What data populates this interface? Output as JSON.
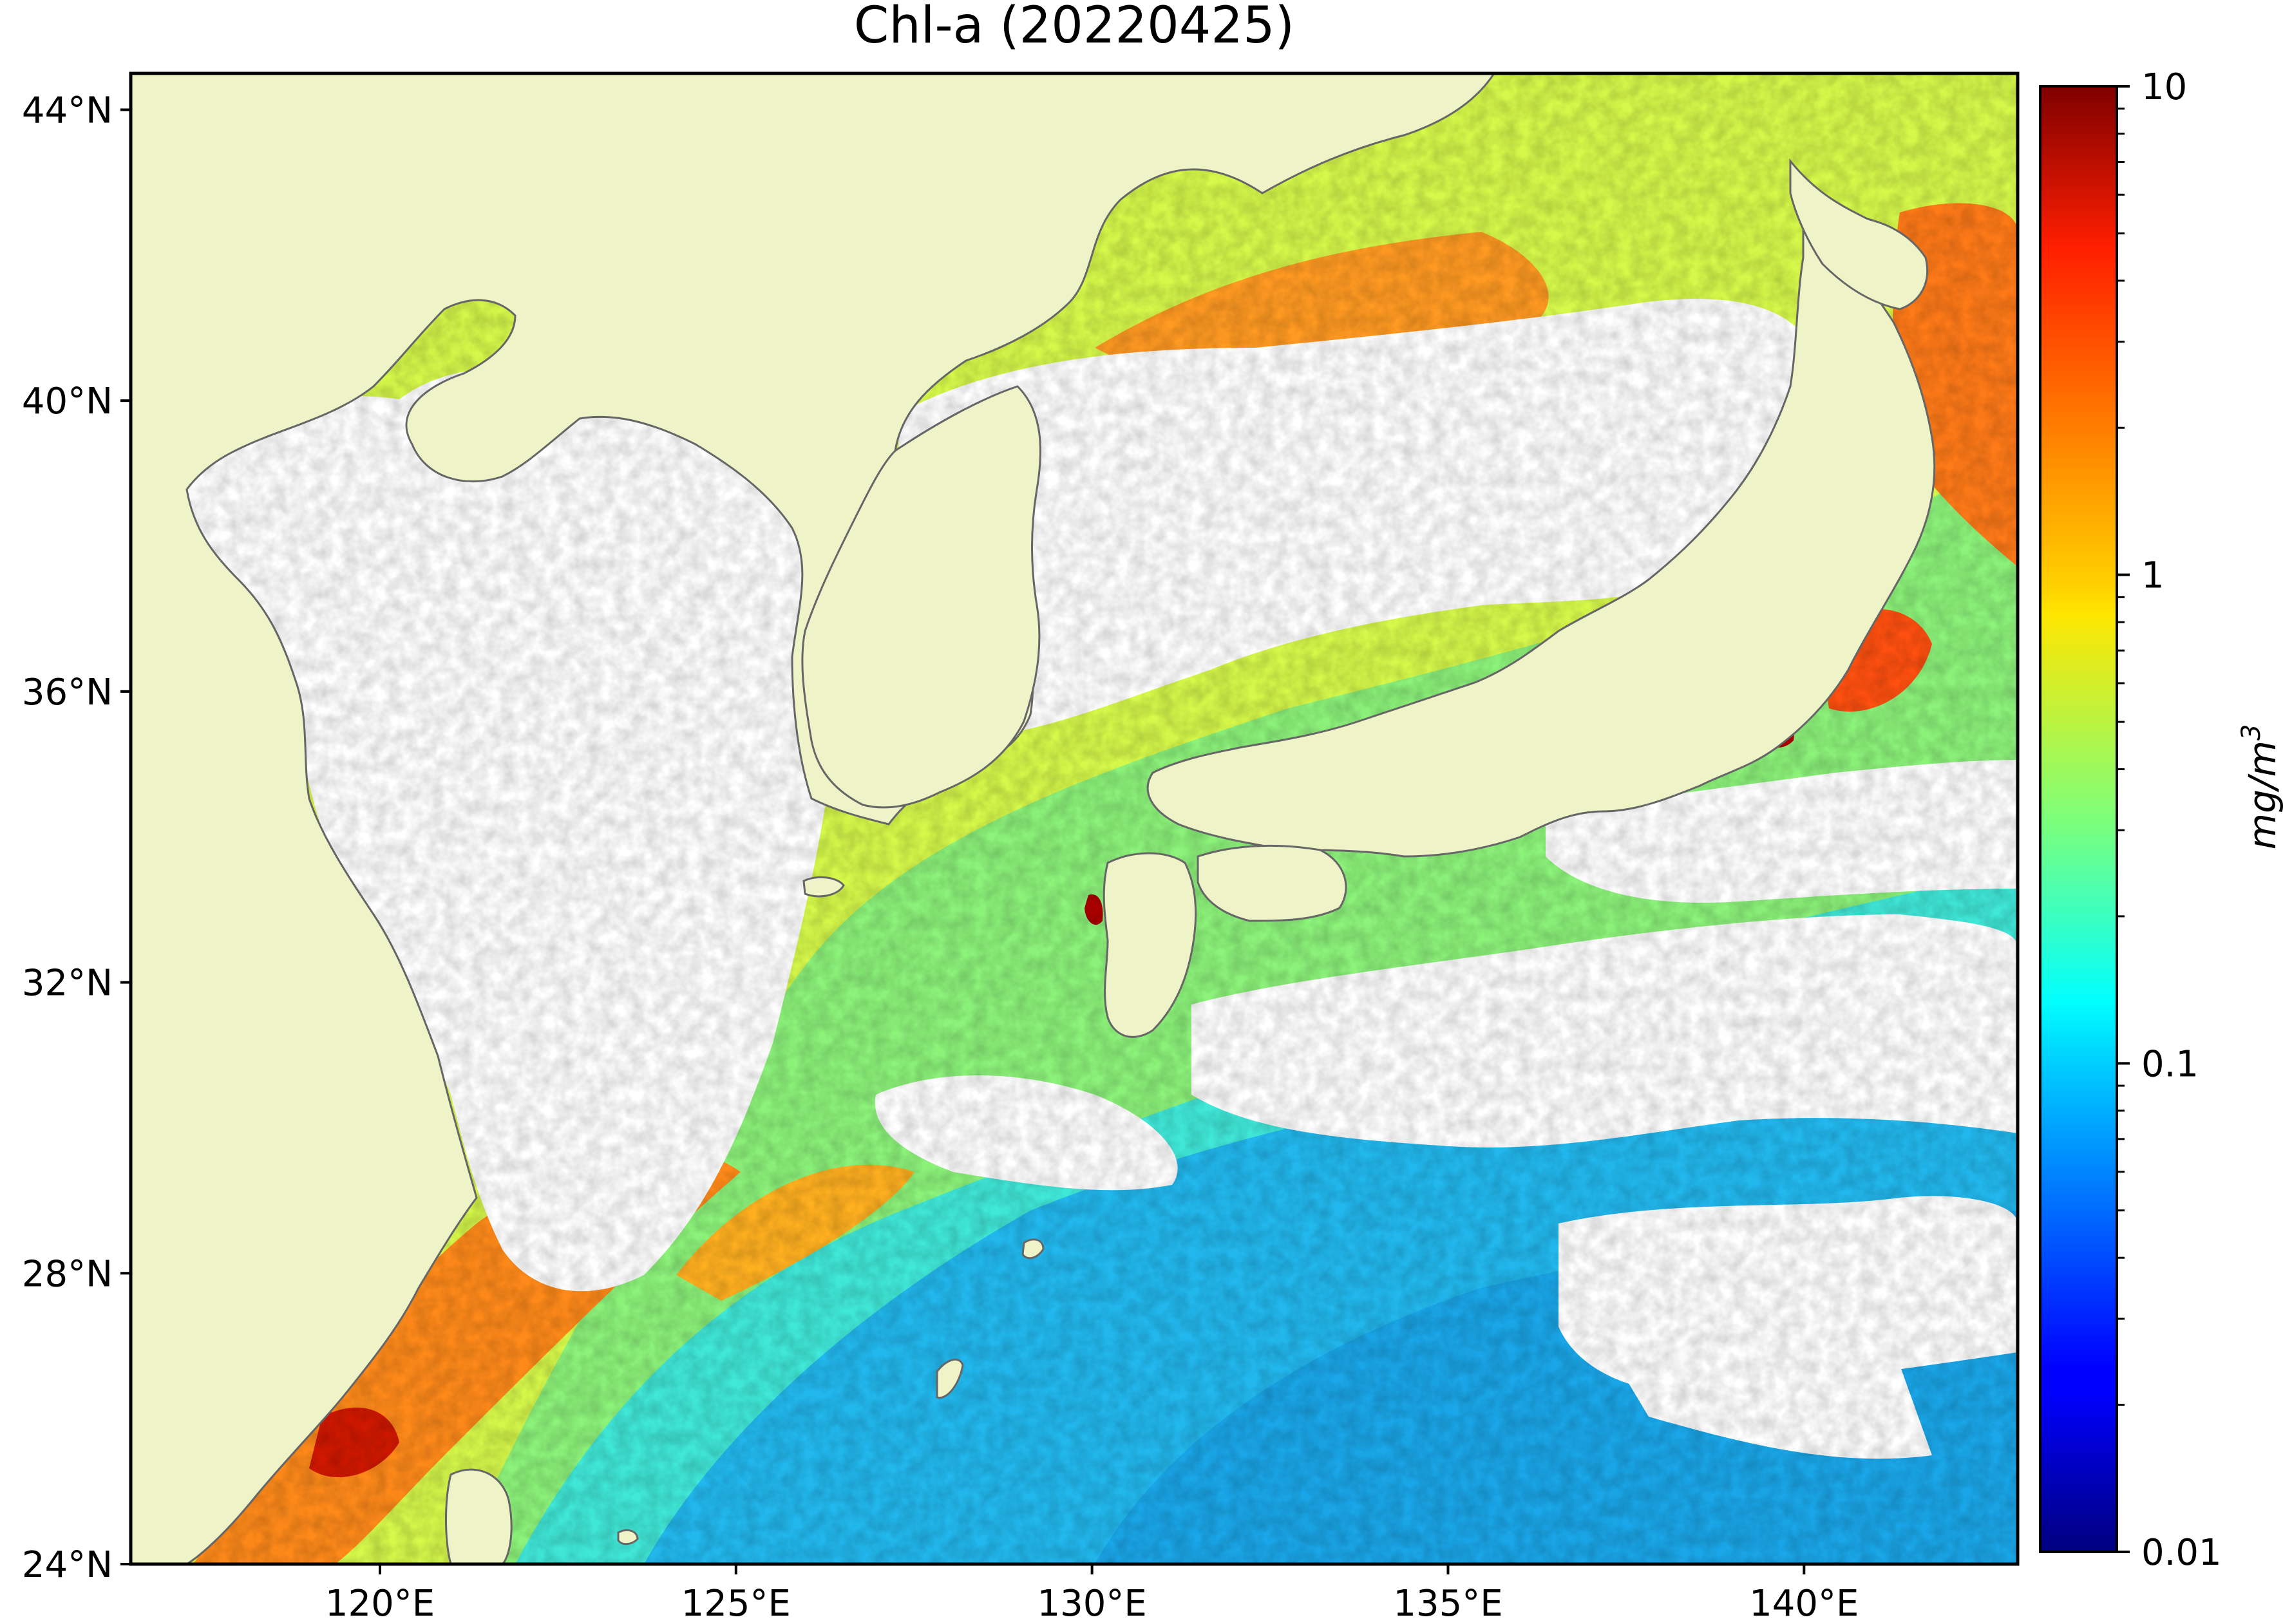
{
  "title": "Chl-a (20220425)",
  "map": {
    "lon_range": [
      116.5,
      143.0
    ],
    "lat_range": [
      24.0,
      44.5
    ],
    "lon_ticks": [
      {
        "value": 120,
        "label": "120°E"
      },
      {
        "value": 125,
        "label": "125°E"
      },
      {
        "value": 130,
        "label": "130°E"
      },
      {
        "value": 135,
        "label": "135°E"
      },
      {
        "value": 140,
        "label": "140°E"
      }
    ],
    "lat_ticks": [
      {
        "value": 44,
        "label": "44°N"
      },
      {
        "value": 40,
        "label": "40°N"
      },
      {
        "value": 36,
        "label": "36°N"
      },
      {
        "value": 32,
        "label": "32°N"
      },
      {
        "value": 28,
        "label": "28°N"
      },
      {
        "value": 24,
        "label": "24°N"
      }
    ],
    "colors": {
      "land": "#eff3c8",
      "no_data": "#ffffff",
      "coastline": "#666666"
    }
  },
  "colorbar": {
    "scale": "log",
    "range": [
      0.01,
      10
    ],
    "colormap": "jet",
    "ticks": [
      {
        "value": 10,
        "label": "10"
      },
      {
        "value": 1,
        "label": "1"
      },
      {
        "value": 0.1,
        "label": "0.1"
      },
      {
        "value": 0.01,
        "label": "0.01"
      }
    ],
    "unit_label": "mg/m",
    "unit_superscript": "3"
  }
}
